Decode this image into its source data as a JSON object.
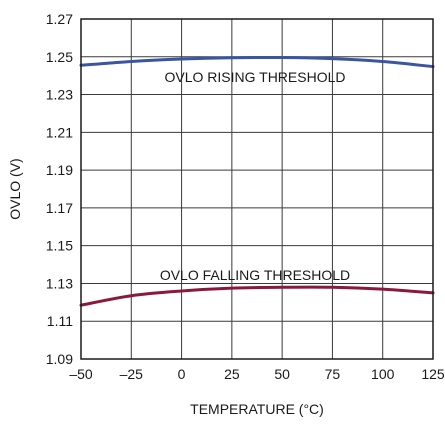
{
  "chart_data": {
    "type": "line",
    "title": "",
    "xlabel": "TEMPERATURE (°C)",
    "ylabel": "OVLO (V)",
    "xlim": [
      -50,
      125
    ],
    "ylim": [
      1.09,
      1.27
    ],
    "x_ticks": [
      -50,
      -25,
      0,
      25,
      50,
      75,
      100,
      125
    ],
    "x_tick_labels": [
      "–50",
      "–25",
      "0",
      "25",
      "50",
      "75",
      "100",
      "125"
    ],
    "y_ticks": [
      1.09,
      1.11,
      1.13,
      1.15,
      1.17,
      1.19,
      1.21,
      1.23,
      1.25,
      1.27
    ],
    "y_tick_labels": [
      "1.09",
      "1.11",
      "1.13",
      "1.15",
      "1.17",
      "1.19",
      "1.21",
      "1.23",
      "1.25",
      "1.27"
    ],
    "grid": true,
    "legend": "none",
    "series": [
      {
        "color": "#3a56a0",
        "annotation": "OVLO RISING THRESHOLD",
        "x": [
          -50,
          -25,
          0,
          25,
          50,
          75,
          100,
          125
        ],
        "y": [
          1.2455,
          1.2475,
          1.2488,
          1.2495,
          1.2496,
          1.249,
          1.2475,
          1.2448
        ]
      },
      {
        "color": "#8a1a3c",
        "annotation": "OVLO FALLING THRESHOLD",
        "x": [
          -50,
          -25,
          0,
          25,
          50,
          75,
          100,
          125
        ],
        "y": [
          1.1185,
          1.1235,
          1.126,
          1.1275,
          1.128,
          1.128,
          1.127,
          1.125
        ]
      }
    ]
  }
}
